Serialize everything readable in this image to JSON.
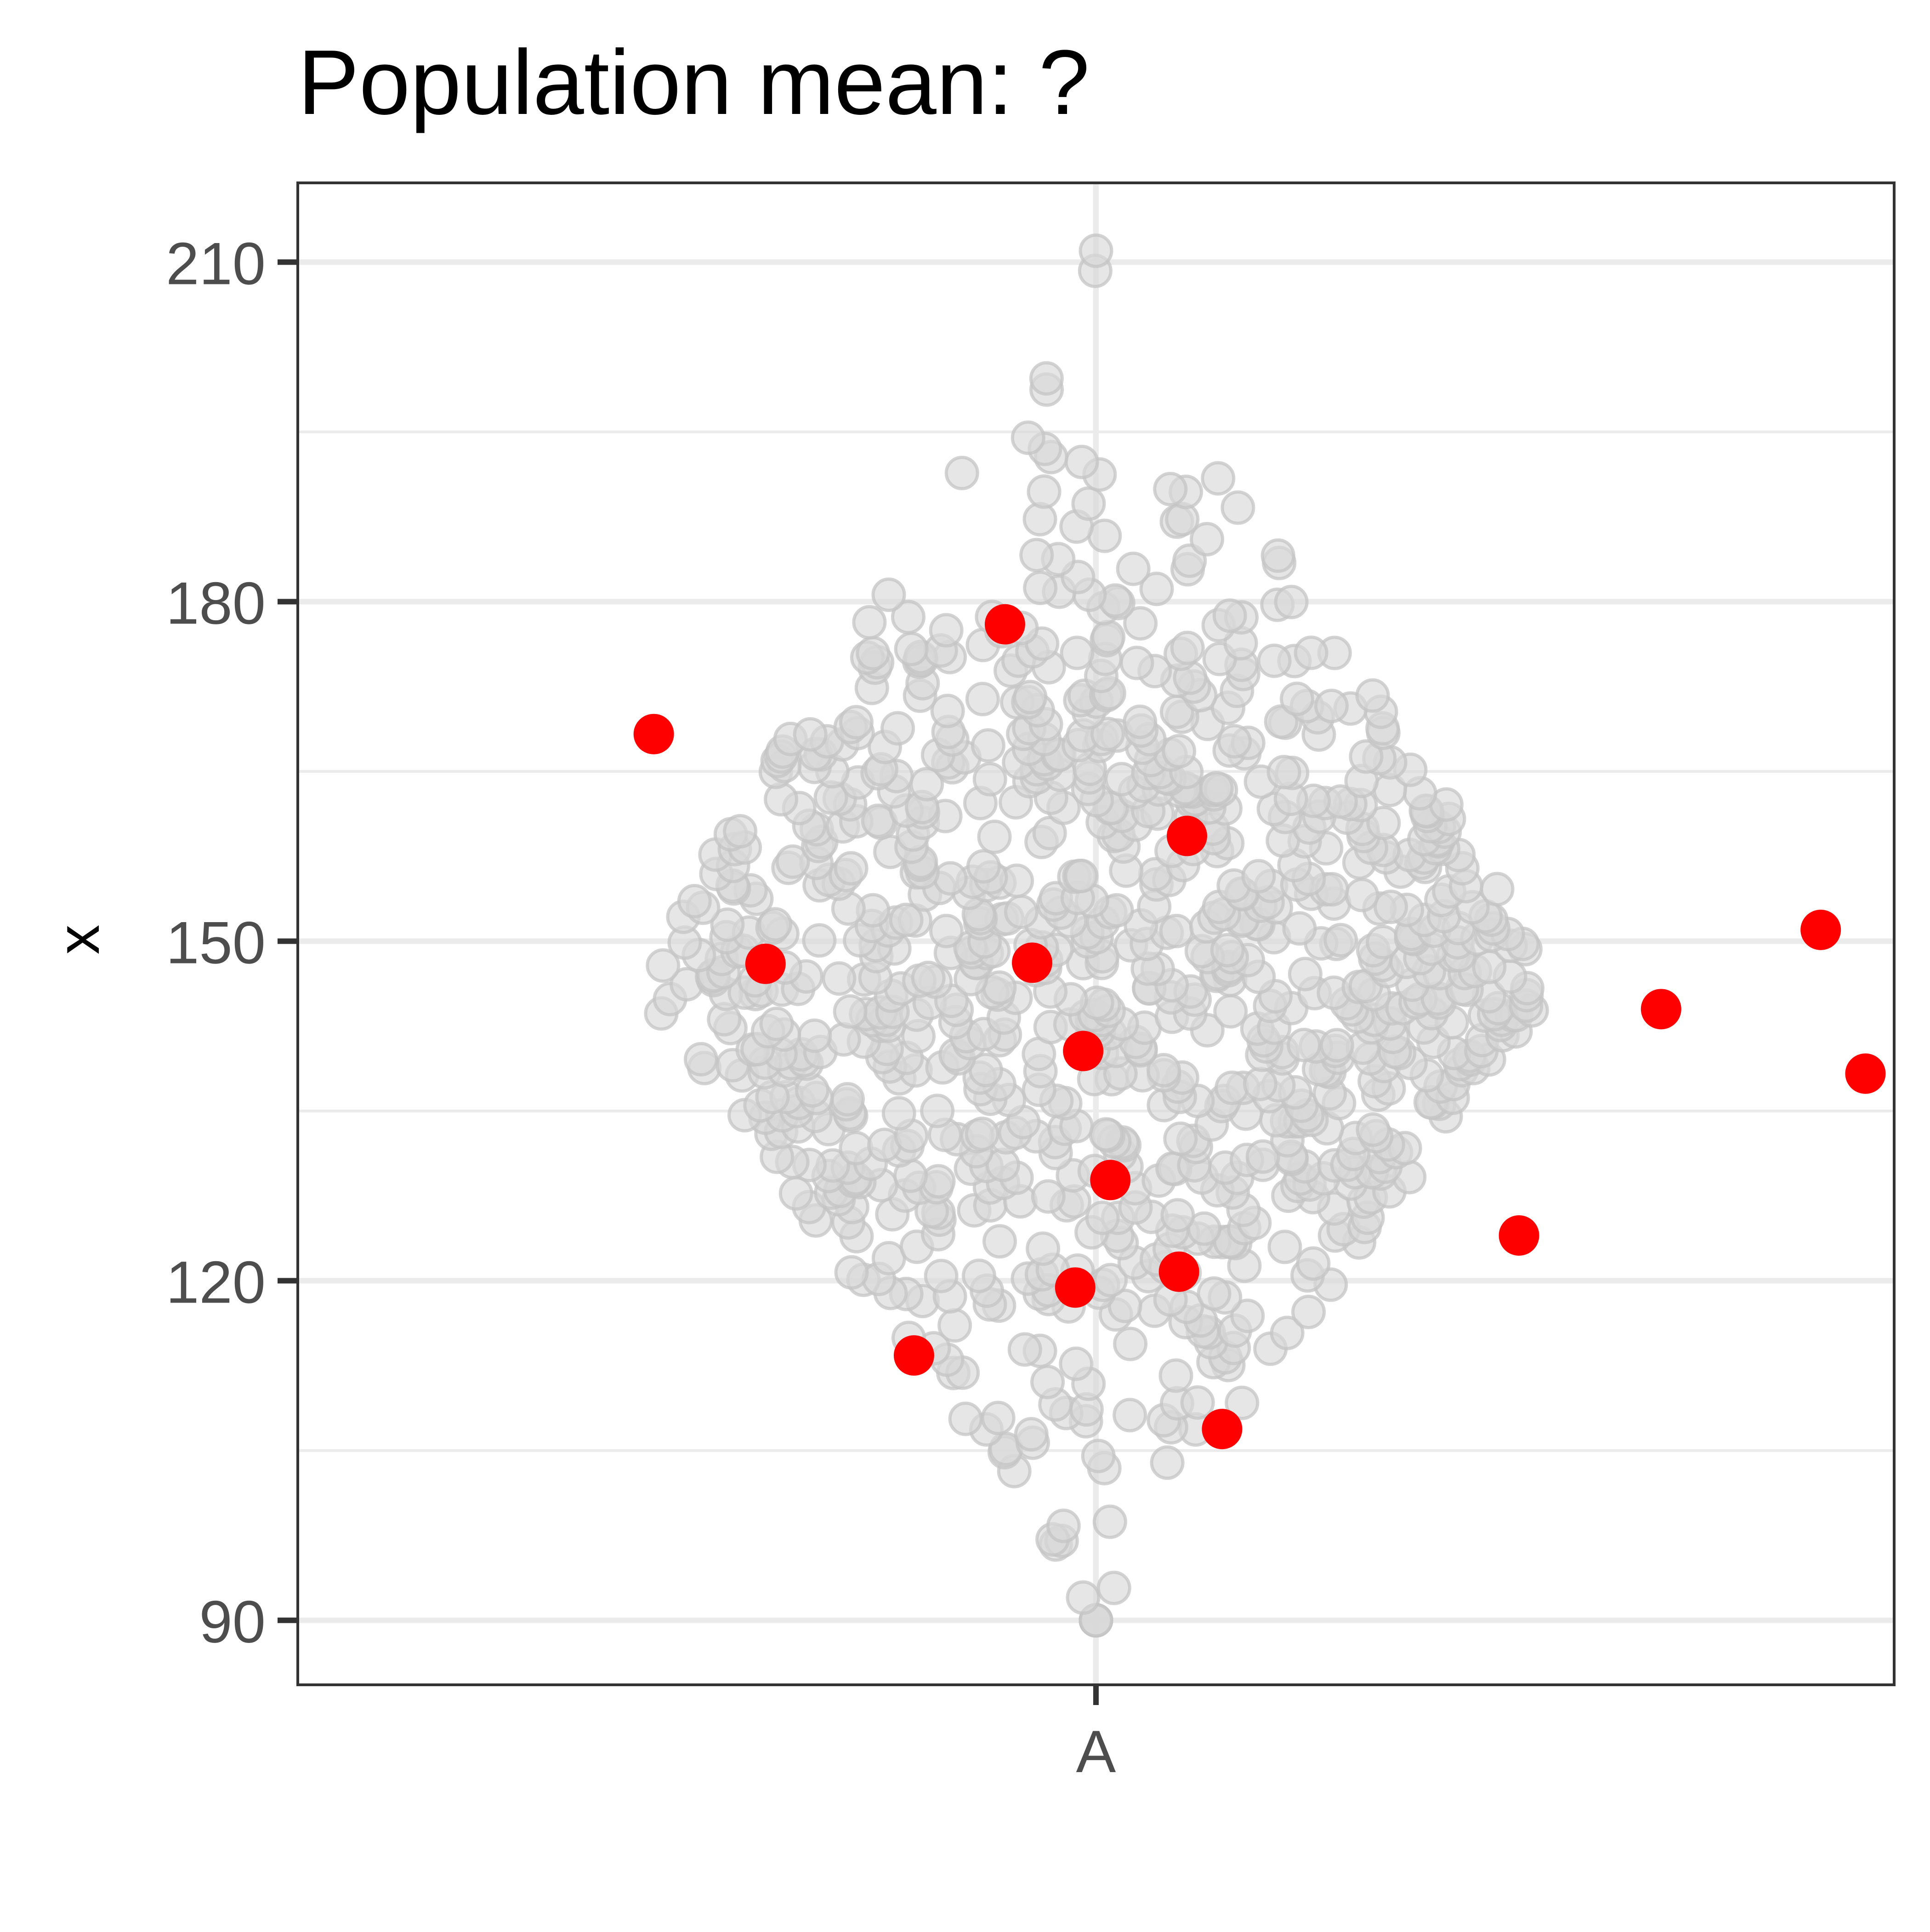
{
  "chart_data": {
    "type": "scatter",
    "title": "Population mean: ?",
    "xlabel": "",
    "ylabel": "x",
    "categories": [
      "A"
    ],
    "y_ticks": [
      90,
      120,
      150,
      180,
      210
    ],
    "y_minor_ticks": [
      105,
      135,
      165,
      195
    ],
    "ylim": [
      84.3,
      217
    ],
    "grid": true,
    "legend": "none",
    "colors": {
      "population": "#d9d9d9",
      "population_edge": "#c4c4c4",
      "sample": "#ff0000",
      "grid": "#ebebeb",
      "panel_border": "#333333",
      "tick_text": "#4d4d4d",
      "title_text": "#000000"
    },
    "population_distribution": {
      "shape": "swarm",
      "center": 147,
      "spread": 19,
      "min": 90,
      "max": 211,
      "count": 1000
    },
    "sample_points": [
      {
        "y": 178.0,
        "offset": -0.057
      },
      {
        "y": 168.3,
        "offset": -0.277
      },
      {
        "y": 159.3,
        "offset": 0.057
      },
      {
        "y": 151.0,
        "offset": 0.454
      },
      {
        "y": 148.0,
        "offset": -0.207
      },
      {
        "y": 148.1,
        "offset": -0.04
      },
      {
        "y": 144.0,
        "offset": 0.354
      },
      {
        "y": 140.3,
        "offset": -0.008
      },
      {
        "y": 138.3,
        "offset": 0.482
      },
      {
        "y": 128.9,
        "offset": 0.009
      },
      {
        "y": 124.0,
        "offset": 0.265
      },
      {
        "y": 120.8,
        "offset": 0.052
      },
      {
        "y": 119.4,
        "offset": -0.013
      },
      {
        "y": 113.4,
        "offset": -0.114
      },
      {
        "y": 106.9,
        "offset": 0.079
      }
    ]
  }
}
